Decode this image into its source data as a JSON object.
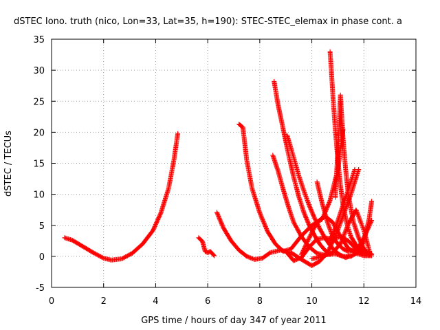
{
  "chart_data": {
    "type": "scatter",
    "title": "dSTEC Iono. truth (nico, Lon=33, Lat=35, h=190): STEC-STEC_elemax in phase cont. a",
    "xlabel": "GPS time / hours of day 347 of year 2011",
    "ylabel": "dSTEC  / TECUs",
    "xlim": [
      0,
      14
    ],
    "ylim": [
      -5,
      35
    ],
    "xticks": [
      "0",
      "2",
      "4",
      "6",
      "8",
      "10",
      "12",
      "14"
    ],
    "yticks": [
      "-5",
      "0",
      "5",
      "10",
      "15",
      "20",
      "25",
      "30",
      "35"
    ],
    "grid": true,
    "legend": "none",
    "marker": "+",
    "color": "#ff0000",
    "series": [
      {
        "x": [
          0.5,
          0.8,
          1.2,
          1.6,
          2.0,
          2.3,
          2.7,
          3.1,
          3.5,
          3.9,
          4.2,
          4.5,
          4.7,
          4.85
        ],
        "values": [
          3.0,
          2.6,
          1.6,
          0.6,
          -0.3,
          -0.6,
          -0.4,
          0.5,
          2.0,
          4.2,
          7.0,
          11.0,
          15.5,
          19.8
        ]
      },
      {
        "x": [
          5.65,
          5.8,
          5.9,
          6.0,
          6.1,
          6.25
        ],
        "values": [
          3.0,
          2.4,
          0.8,
          0.6,
          0.8,
          0.1
        ]
      },
      {
        "x": [
          6.35,
          6.6,
          6.9,
          7.2,
          7.5,
          7.8,
          8.1,
          8.4,
          8.8,
          9.2,
          9.6,
          10.0,
          10.3,
          10.6,
          10.9,
          11.2,
          11.5,
          11.8
        ],
        "values": [
          7.1,
          4.6,
          2.5,
          1.0,
          0.0,
          -0.5,
          -0.3,
          0.6,
          1.0,
          0.6,
          -0.5,
          -1.5,
          -0.8,
          0.6,
          3.2,
          6.5,
          10.0,
          14.0
        ]
      },
      {
        "x": [
          7.2,
          7.35,
          7.5,
          7.7,
          8.0,
          8.3,
          8.6,
          8.9,
          9.2,
          9.6,
          10.0,
          10.4,
          10.7,
          11.0,
          11.2
        ],
        "values": [
          21.3,
          20.8,
          15.5,
          11.0,
          7.0,
          4.0,
          2.0,
          0.8,
          1.2,
          3.3,
          5.0,
          6.0,
          9.0,
          14.0,
          20.5
        ]
      },
      {
        "x": [
          8.5,
          8.7,
          8.9,
          9.1,
          9.3,
          9.6,
          9.9,
          10.2,
          10.5,
          10.8,
          11.1,
          11.4,
          11.7,
          12.0,
          12.25
        ],
        "values": [
          16.3,
          13.8,
          10.8,
          8.0,
          5.5,
          3.2,
          1.5,
          0.5,
          0.2,
          0.6,
          2.0,
          5.2,
          7.5,
          4.2,
          0.3
        ]
      },
      {
        "x": [
          8.55,
          8.7,
          8.9,
          9.1,
          9.3,
          9.5,
          9.7,
          9.9,
          10.1,
          10.3,
          10.5,
          10.7
        ],
        "values": [
          28.2,
          24.5,
          20.5,
          16.5,
          12.8,
          9.6,
          7.0,
          5.0,
          3.4,
          2.0,
          1.0,
          0.3
        ]
      },
      {
        "x": [
          9.0,
          9.3,
          9.6,
          9.9,
          10.2,
          10.5,
          10.8,
          11.1,
          11.4,
          11.7,
          12.0,
          12.2
        ],
        "values": [
          0.8,
          -0.7,
          -0.2,
          1.5,
          2.8,
          3.0,
          2.8,
          3.2,
          2.5,
          1.2,
          0.4,
          0.2
        ]
      },
      {
        "x": [
          9.05,
          9.3,
          9.5,
          9.7,
          9.9,
          10.1,
          10.3,
          10.5,
          10.7,
          10.9,
          11.1,
          11.3,
          11.5
        ],
        "values": [
          19.5,
          16.0,
          13.0,
          10.5,
          8.2,
          6.2,
          4.5,
          3.0,
          1.8,
          0.8,
          0.2,
          -0.2,
          0.1
        ]
      },
      {
        "x": [
          9.6,
          9.9,
          10.2,
          10.5,
          10.8,
          11.1,
          11.4,
          11.7,
          12.0,
          12.3
        ],
        "values": [
          0.3,
          3.0,
          5.5,
          6.5,
          5.5,
          3.2,
          1.3,
          0.5,
          0.1,
          0.1
        ]
      },
      {
        "x": [
          10.2,
          10.4,
          10.6,
          10.8,
          11.0,
          11.2,
          11.4,
          11.6,
          11.8,
          12.0,
          12.3
        ],
        "values": [
          12.0,
          8.5,
          5.5,
          3.2,
          2.0,
          1.2,
          0.8,
          1.0,
          1.5,
          3.0,
          5.8
        ]
      },
      {
        "x": [
          10.7,
          10.75,
          10.8,
          10.9,
          11.0,
          11.1,
          11.2,
          11.35,
          11.5,
          11.7,
          11.9,
          12.1,
          12.3
        ],
        "values": [
          33.0,
          30.0,
          26.5,
          20.5,
          15.5,
          11.5,
          8.2,
          5.2,
          3.2,
          1.8,
          1.0,
          0.6,
          0.4
        ]
      },
      {
        "x": [
          10.9,
          11.0,
          11.05,
          11.1,
          11.2,
          11.3,
          11.4,
          11.6,
          11.8,
          12.0,
          12.2,
          12.3
        ],
        "values": [
          9.5,
          17.0,
          21.0,
          26.0,
          19.0,
          14.0,
          10.0,
          5.5,
          3.0,
          1.2,
          0.4,
          0.3
        ]
      },
      {
        "x": [
          10.0,
          10.3,
          10.6,
          10.9,
          11.2,
          11.5,
          11.8,
          12.0,
          12.2,
          12.3
        ],
        "values": [
          -0.4,
          -0.1,
          0.3,
          0.4,
          0.0,
          0.0,
          0.7,
          2.5,
          6.0,
          8.9
        ]
      },
      {
        "x": [
          10.7,
          10.9,
          11.1,
          11.3,
          11.5,
          11.65
        ],
        "values": [
          2.5,
          4.5,
          7.0,
          9.5,
          12.0,
          14.0
        ]
      }
    ]
  }
}
